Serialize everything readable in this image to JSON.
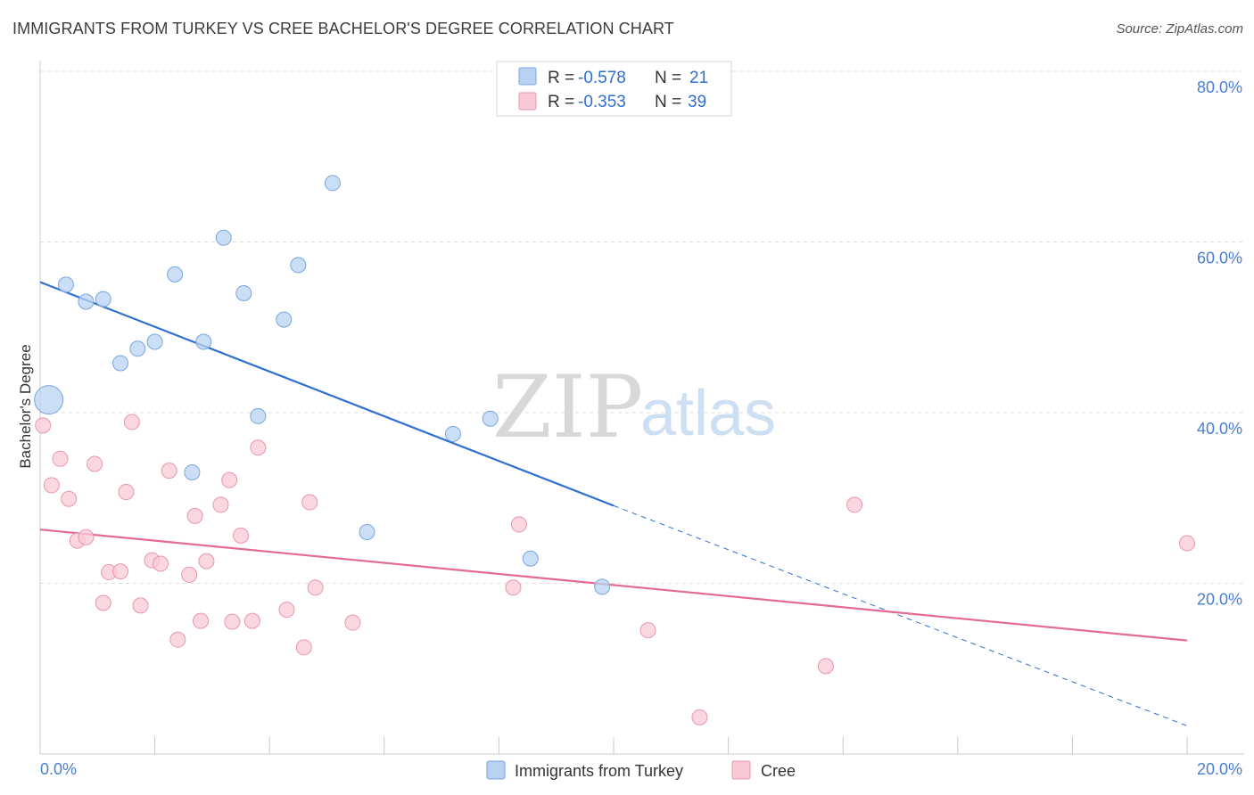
{
  "header": {
    "title": "IMMIGRANTS FROM TURKEY VS CREE BACHELOR'S DEGREE CORRELATION CHART",
    "source": "Source: ZipAtlas.com"
  },
  "watermark": {
    "zip": "ZIP",
    "atlas": "atlas"
  },
  "legend": {
    "rows": [
      {
        "r_label": "R = ",
        "r_value": "-0.578",
        "n_label": "N = ",
        "n_value": "21"
      },
      {
        "r_label": "R = ",
        "r_value": "-0.353",
        "n_label": "N = ",
        "n_value": "39"
      }
    ]
  },
  "bottom_legend": [
    {
      "label": "Immigrants from Turkey"
    },
    {
      "label": "Cree"
    }
  ],
  "colors": {
    "turkey_fill": "#b8d3f2",
    "turkey_stroke": "#7aa6df",
    "turkey_line": "#2f6fd0",
    "cree_fill": "#f9c9d6",
    "cree_stroke": "#e896ae",
    "cree_line": "#e46a93",
    "grid": "#dddddd",
    "tick_label": "#4a7fd0"
  },
  "chart_data": {
    "type": "scatter",
    "title": "IMMIGRANTS FROM TURKEY VS CREE BACHELOR'S DEGREE CORRELATION CHART",
    "xlabel": "",
    "ylabel": "Bachelor's Degree",
    "xlim": [
      0,
      20
    ],
    "ylim": [
      0,
      80
    ],
    "x_tick_labels": [
      "0.0%",
      "20.0%"
    ],
    "y_ticks": [
      20,
      40,
      60,
      80
    ],
    "y_tick_labels": [
      "20.0%",
      "40.0%",
      "60.0%",
      "80.0%"
    ],
    "grid": true,
    "legend_position": "top-center",
    "series": [
      {
        "name": "Immigrants from Turkey",
        "color": "#7aa6df",
        "points": [
          {
            "x": 0.15,
            "y": 41.5,
            "big": true
          },
          {
            "x": 0.45,
            "y": 55.0
          },
          {
            "x": 0.8,
            "y": 53.0
          },
          {
            "x": 1.1,
            "y": 53.3
          },
          {
            "x": 1.4,
            "y": 45.8
          },
          {
            "x": 1.7,
            "y": 47.5
          },
          {
            "x": 2.0,
            "y": 48.3
          },
          {
            "x": 2.35,
            "y": 56.2
          },
          {
            "x": 2.65,
            "y": 33.0
          },
          {
            "x": 2.85,
            "y": 48.3
          },
          {
            "x": 3.2,
            "y": 60.5
          },
          {
            "x": 3.55,
            "y": 54.0
          },
          {
            "x": 3.8,
            "y": 39.6
          },
          {
            "x": 4.25,
            "y": 50.9
          },
          {
            "x": 4.5,
            "y": 57.3
          },
          {
            "x": 5.1,
            "y": 66.9
          },
          {
            "x": 5.7,
            "y": 26.0
          },
          {
            "x": 7.2,
            "y": 37.5
          },
          {
            "x": 7.85,
            "y": 39.3
          },
          {
            "x": 8.55,
            "y": 22.9
          },
          {
            "x": 9.8,
            "y": 19.6
          }
        ],
        "trend": {
          "x0": 0,
          "y0": 55.3,
          "x1": 10.0,
          "y1": 29.1,
          "dash_to_x": 20.0,
          "dash_to_y": 3.3
        }
      },
      {
        "name": "Cree",
        "color": "#e896ae",
        "points": [
          {
            "x": 0.05,
            "y": 38.5
          },
          {
            "x": 0.2,
            "y": 31.5
          },
          {
            "x": 0.35,
            "y": 34.6
          },
          {
            "x": 0.5,
            "y": 29.9
          },
          {
            "x": 0.65,
            "y": 25.0
          },
          {
            "x": 0.8,
            "y": 25.4
          },
          {
            "x": 0.95,
            "y": 34.0
          },
          {
            "x": 1.1,
            "y": 17.7
          },
          {
            "x": 1.2,
            "y": 21.3
          },
          {
            "x": 1.4,
            "y": 21.4
          },
          {
            "x": 1.5,
            "y": 30.7
          },
          {
            "x": 1.6,
            "y": 38.9
          },
          {
            "x": 1.75,
            "y": 17.4
          },
          {
            "x": 1.95,
            "y": 22.7
          },
          {
            "x": 2.1,
            "y": 22.3
          },
          {
            "x": 2.25,
            "y": 33.2
          },
          {
            "x": 2.4,
            "y": 13.4
          },
          {
            "x": 2.6,
            "y": 21.0
          },
          {
            "x": 2.7,
            "y": 27.9
          },
          {
            "x": 2.8,
            "y": 15.6
          },
          {
            "x": 2.9,
            "y": 22.6
          },
          {
            "x": 3.15,
            "y": 29.2
          },
          {
            "x": 3.3,
            "y": 32.1
          },
          {
            "x": 3.35,
            "y": 15.5
          },
          {
            "x": 3.5,
            "y": 25.6
          },
          {
            "x": 3.7,
            "y": 15.6
          },
          {
            "x": 3.8,
            "y": 35.9
          },
          {
            "x": 4.3,
            "y": 16.9
          },
          {
            "x": 4.6,
            "y": 12.5
          },
          {
            "x": 4.7,
            "y": 29.5
          },
          {
            "x": 4.8,
            "y": 19.5
          },
          {
            "x": 5.45,
            "y": 15.4
          },
          {
            "x": 8.25,
            "y": 19.5
          },
          {
            "x": 8.35,
            "y": 26.9
          },
          {
            "x": 10.6,
            "y": 14.5
          },
          {
            "x": 11.5,
            "y": 4.3
          },
          {
            "x": 13.7,
            "y": 10.3
          },
          {
            "x": 14.2,
            "y": 29.2
          },
          {
            "x": 20.0,
            "y": 24.7
          }
        ],
        "trend": {
          "x0": 0,
          "y0": 26.3,
          "x1": 20.0,
          "y1": 13.3
        }
      }
    ]
  }
}
